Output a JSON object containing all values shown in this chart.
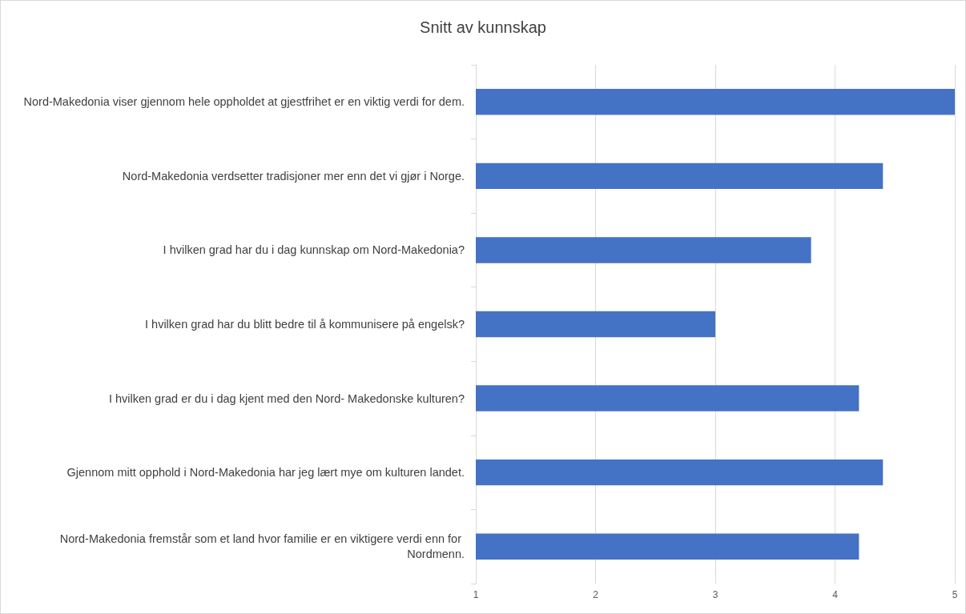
{
  "chart_data": {
    "type": "bar",
    "orientation": "horizontal",
    "title": "Snitt av kunnskap",
    "categories": [
      "Nord-Makedonia viser gjennom hele oppholdet at gjestfrihet er en viktig verdi for dem.",
      "Nord-Makedonia verdsetter tradisjoner mer enn det vi gjør i Norge.",
      "I hvilken grad har du i dag kunnskap om Nord-Makedonia?",
      "I hvilken grad har du blitt bedre til å kommunisere på engelsk?",
      "I hvilken grad er du i dag kjent med den Nord- Makedonske kulturen?",
      "Gjennom mitt opphold i Nord-Makedonia har jeg lært mye om kulturen landet.",
      "Nord-Makedonia fremstår som et land hvor familie er en viktigere verdi enn for Nordmenn."
    ],
    "values": [
      5,
      4.4,
      3.8,
      3.0,
      4.2,
      4.4,
      4.2
    ],
    "color": "#4472c4",
    "xlim": [
      1,
      5
    ],
    "xticks": [
      1,
      2,
      3,
      4,
      5
    ],
    "grid": "x"
  }
}
